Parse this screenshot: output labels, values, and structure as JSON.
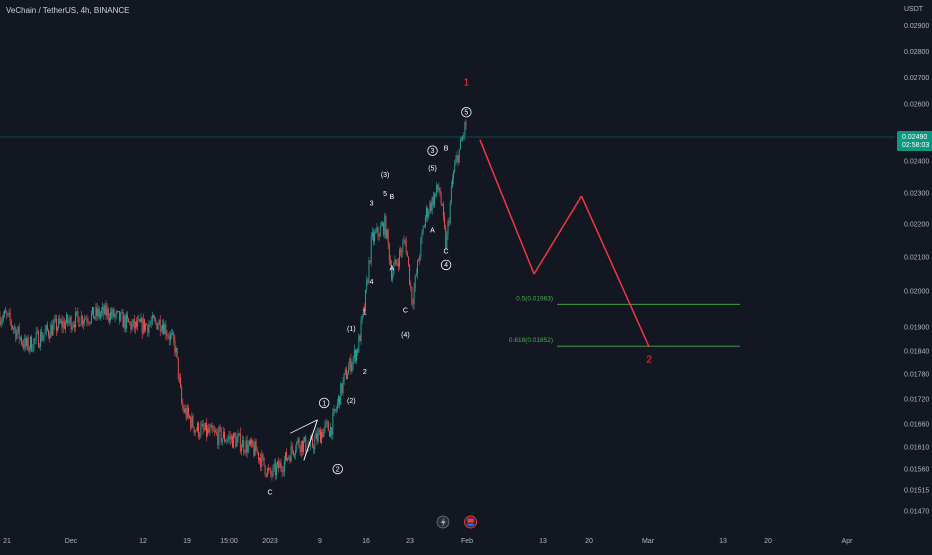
{
  "header": {
    "title": "VeChain / TetherUS, 4h, BINANCE",
    "currency": "USDT"
  },
  "price_badge": {
    "price": "0.02490",
    "countdown": "02:58:03",
    "color": "#089981"
  },
  "colors": {
    "background": "#131722",
    "up": "#26a69a",
    "down": "#ef5350",
    "projection": "#f23645",
    "fib": "#4caf50"
  },
  "icons": [
    "lightning-icon",
    "flag-icon"
  ],
  "chart_data": {
    "type": "candlestick",
    "symbol": "VeChain / TetherUS",
    "interval": "4h",
    "exchange": "BINANCE",
    "y_ticks": [
      "0.02900",
      "0.02800",
      "0.02700",
      "0.02600",
      "0.02490",
      "0.02400",
      "0.02300",
      "0.02200",
      "0.02100",
      "0.02000",
      "0.01900",
      "0.01840",
      "0.01780",
      "0.01720",
      "0.01660",
      "0.01610",
      "0.01560",
      "0.01515",
      "0.01470"
    ],
    "x_ticks": [
      "21",
      "Dec",
      "12",
      "19",
      "15:00",
      "2023",
      "9",
      "16",
      "23",
      "Feb",
      "13",
      "20",
      "Mar",
      "13",
      "20",
      "Apr"
    ],
    "last_price": 0.0249,
    "price_path": [
      {
        "date": "2022-11-21",
        "close": 0.0193
      },
      {
        "date": "2022-11-24",
        "close": 0.0185
      },
      {
        "date": "2022-11-28",
        "close": 0.019
      },
      {
        "date": "2022-12-02",
        "close": 0.01925
      },
      {
        "date": "2022-12-06",
        "close": 0.0194
      },
      {
        "date": "2022-12-10",
        "close": 0.019
      },
      {
        "date": "2022-12-14",
        "close": 0.01915
      },
      {
        "date": "2022-12-16",
        "close": 0.0185
      },
      {
        "date": "2022-12-17",
        "close": 0.017
      },
      {
        "date": "2022-12-19",
        "close": 0.0165
      },
      {
        "date": "2022-12-22",
        "close": 0.01635
      },
      {
        "date": "2022-12-25",
        "close": 0.01625
      },
      {
        "date": "2022-12-28",
        "close": 0.016
      },
      {
        "date": "2022-12-30",
        "close": 0.01545
      },
      {
        "date": "2023-01-01",
        "close": 0.01575
      },
      {
        "date": "2023-01-03",
        "close": 0.0162
      },
      {
        "date": "2023-01-05",
        "close": 0.0161
      },
      {
        "date": "2023-01-07",
        "close": 0.0165
      },
      {
        "date": "2023-01-08",
        "close": 0.0165
      },
      {
        "date": "2023-01-10",
        "close": 0.0177
      },
      {
        "date": "2023-01-12",
        "close": 0.0185
      },
      {
        "date": "2023-01-13",
        "close": 0.0196
      },
      {
        "date": "2023-01-14",
        "close": 0.0215
      },
      {
        "date": "2023-01-16",
        "close": 0.022
      },
      {
        "date": "2023-01-17",
        "close": 0.0205
      },
      {
        "date": "2023-01-19",
        "close": 0.0215
      },
      {
        "date": "2023-01-20",
        "close": 0.0197
      },
      {
        "date": "2023-01-22",
        "close": 0.0223
      },
      {
        "date": "2023-01-24",
        "close": 0.0232
      },
      {
        "date": "2023-01-25",
        "close": 0.0213
      },
      {
        "date": "2023-01-26",
        "close": 0.0235
      },
      {
        "date": "2023-01-28",
        "close": 0.0254
      }
    ],
    "projection": [
      {
        "date": "2023-01-30",
        "price": 0.0248
      },
      {
        "date": "2023-02-07",
        "price": 0.0205
      },
      {
        "date": "2023-02-14",
        "price": 0.0229
      },
      {
        "date": "2023-02-24",
        "price": 0.0185
      }
    ],
    "fib_levels": [
      {
        "label": "0.5(0.01963)",
        "price": 0.01963
      },
      {
        "label": "0.618(0.01852)",
        "price": 0.01852
      }
    ],
    "wave_labels": [
      {
        "text": "C",
        "date": "2022-12-30",
        "price": 0.01505,
        "circled": false
      },
      {
        "text": "1",
        "date": "2023-01-07",
        "price": 0.01705,
        "circled": true
      },
      {
        "text": "2",
        "date": "2023-01-09",
        "price": 0.01555,
        "circled": true
      },
      {
        "text": "(1)",
        "date": "2023-01-11",
        "price": 0.0189,
        "circled": false
      },
      {
        "text": "(2)",
        "date": "2023-01-11",
        "price": 0.0171,
        "circled": false
      },
      {
        "text": "1",
        "date": "2023-01-13",
        "price": 0.01935,
        "circled": false
      },
      {
        "text": "2",
        "date": "2023-01-13",
        "price": 0.0178,
        "circled": false
      },
      {
        "text": "3",
        "date": "2023-01-14",
        "price": 0.0226,
        "circled": false
      },
      {
        "text": "4",
        "date": "2023-01-14",
        "price": 0.0202,
        "circled": false
      },
      {
        "text": "(3)",
        "date": "2023-01-16",
        "price": 0.0235,
        "circled": false
      },
      {
        "text": "5",
        "date": "2023-01-16",
        "price": 0.0229,
        "circled": false
      },
      {
        "text": "B",
        "date": "2023-01-17",
        "price": 0.0228,
        "circled": false
      },
      {
        "text": "A",
        "date": "2023-01-17",
        "price": 0.0206,
        "circled": false
      },
      {
        "text": "C",
        "date": "2023-01-19",
        "price": 0.0194,
        "circled": false
      },
      {
        "text": "(4)",
        "date": "2023-01-19",
        "price": 0.01875,
        "circled": false
      },
      {
        "text": "3",
        "date": "2023-01-23",
        "price": 0.0243,
        "circled": true
      },
      {
        "text": "B",
        "date": "2023-01-25",
        "price": 0.0244,
        "circled": false
      },
      {
        "text": "(5)",
        "date": "2023-01-23",
        "price": 0.0237,
        "circled": false
      },
      {
        "text": "A",
        "date": "2023-01-23",
        "price": 0.02175,
        "circled": false
      },
      {
        "text": "C",
        "date": "2023-01-25",
        "price": 0.0211,
        "circled": false
      },
      {
        "text": "4",
        "date": "2023-01-25",
        "price": 0.0207,
        "circled": true
      },
      {
        "text": "5",
        "date": "2023-01-28",
        "price": 0.02565,
        "circled": true
      }
    ],
    "projection_labels": [
      {
        "text": "1",
        "date": "2023-01-28",
        "price": 0.0267
      },
      {
        "text": "2",
        "date": "2023-02-24",
        "price": 0.0181
      }
    ]
  }
}
